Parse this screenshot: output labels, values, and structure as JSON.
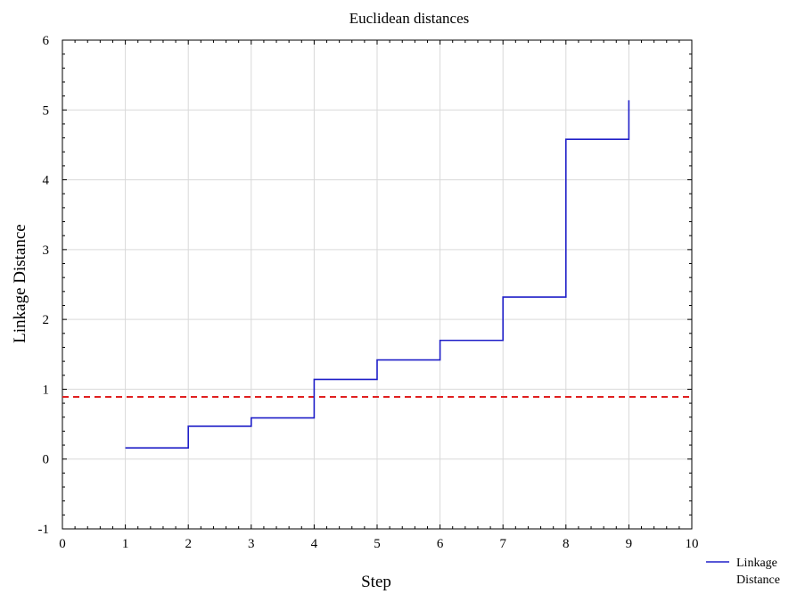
{
  "chart_data": {
    "type": "line",
    "title": "Euclidean distances",
    "xlabel": "Step",
    "ylabel": "Linkage Distance",
    "xlim": [
      0,
      10
    ],
    "ylim": [
      -1,
      6
    ],
    "xticks": [
      0,
      1,
      2,
      3,
      4,
      5,
      6,
      7,
      8,
      9,
      10
    ],
    "yticks": [
      -1,
      0,
      1,
      2,
      3,
      4,
      5,
      6
    ],
    "grid": true,
    "legend_position": "bottom-right",
    "series": [
      {
        "name": "Linkage Distance",
        "style": "step",
        "color": "#2020c8",
        "x": [
          1,
          2,
          3,
          4,
          5,
          6,
          7,
          8,
          9
        ],
        "values": [
          0.16,
          0.47,
          0.59,
          1.14,
          1.42,
          1.7,
          2.32,
          4.58,
          5.14
        ]
      }
    ],
    "reference_lines": [
      {
        "orientation": "horizontal",
        "y": 0.89,
        "style": "dashed",
        "color": "#e02020"
      }
    ]
  }
}
